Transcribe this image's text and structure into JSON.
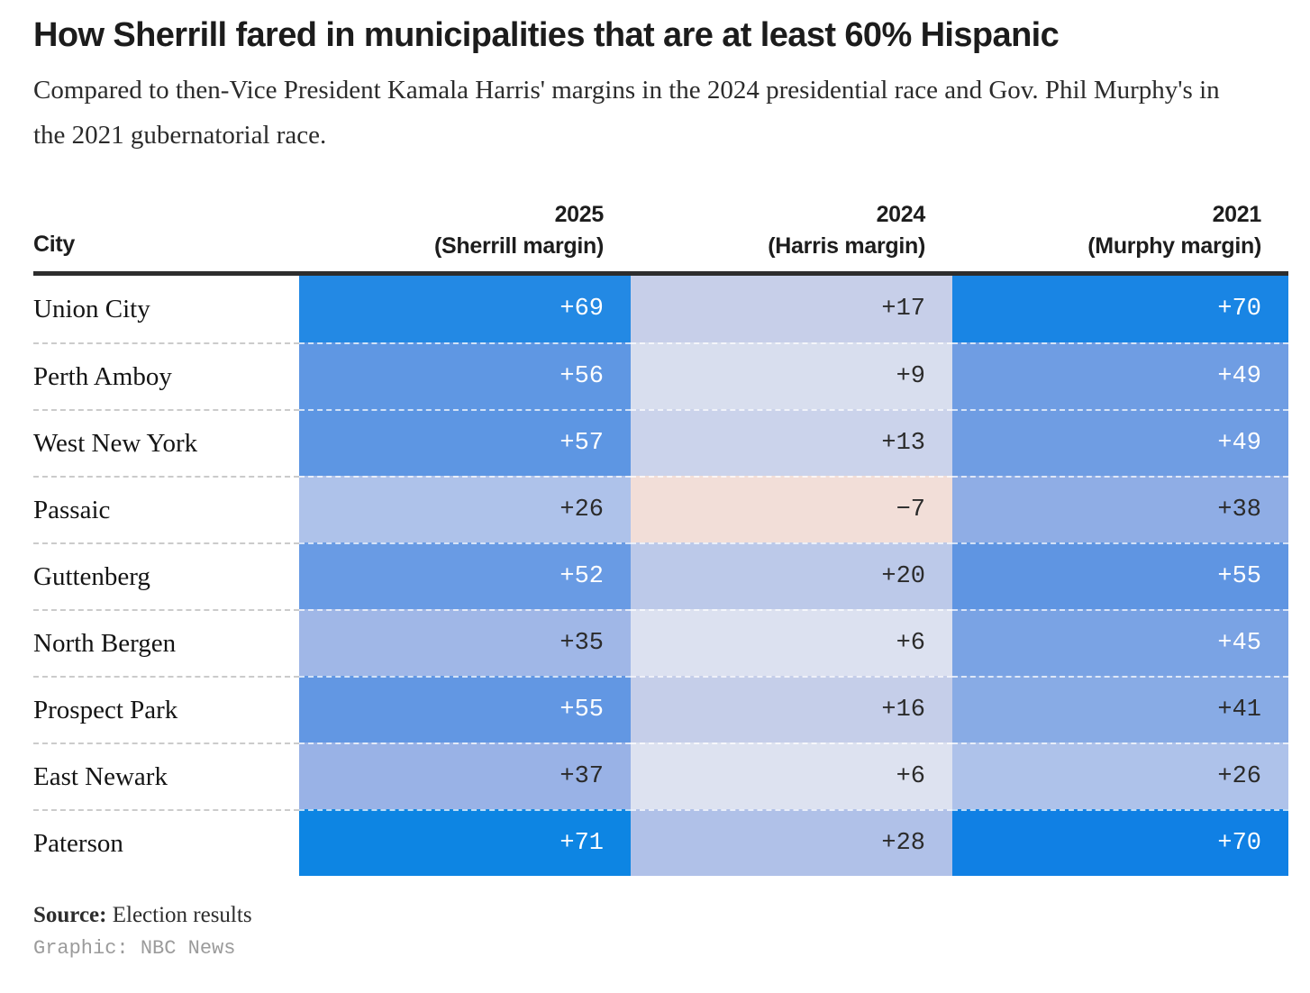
{
  "chart_data": {
    "type": "heatmap",
    "title": "How Sherrill fared in municipalities that are at least 60% Hispanic",
    "subtitle": "Compared to then-Vice President Kamala Harris' margins in the 2024 presidential race and Gov. Phil Murphy's in the 2021 gubernatorial race.",
    "city_header": "City",
    "columns": [
      {
        "year": "2025",
        "label": "(Sherrill margin)"
      },
      {
        "year": "2024",
        "label": "(Harris margin)"
      },
      {
        "year": "2021",
        "label": "(Murphy margin)"
      }
    ],
    "legend_note": "Cell color encodes margin: deep blue = large Democratic margin, pale blue = small margin, pink = negative margin",
    "value_text_dark": "#2b2b2b",
    "value_text_light": "#ffffff",
    "rows": [
      {
        "city": "Union City",
        "values": [
          {
            "display": "+69",
            "value": 69,
            "bg": "#2389E4",
            "text": "#ffffff"
          },
          {
            "display": "+17",
            "value": 17,
            "bg": "#C7CFE9",
            "text": "#2b2b2b"
          },
          {
            "display": "+70",
            "value": 70,
            "bg": "#1985E4",
            "text": "#ffffff"
          }
        ]
      },
      {
        "city": "Perth Amboy",
        "values": [
          {
            "display": "+56",
            "value": 56,
            "bg": "#5F97E3",
            "text": "#ffffff"
          },
          {
            "display": "+9",
            "value": 9,
            "bg": "#D8DEEE",
            "text": "#2b2b2b"
          },
          {
            "display": "+49",
            "value": 49,
            "bg": "#6F9DE3",
            "text": "#ffffff"
          }
        ]
      },
      {
        "city": "West New York",
        "values": [
          {
            "display": "+57",
            "value": 57,
            "bg": "#5D96E3",
            "text": "#ffffff"
          },
          {
            "display": "+13",
            "value": 13,
            "bg": "#CBD3EB",
            "text": "#2b2b2b"
          },
          {
            "display": "+49",
            "value": 49,
            "bg": "#6F9DE3",
            "text": "#ffffff"
          }
        ]
      },
      {
        "city": "Passaic",
        "values": [
          {
            "display": "+26",
            "value": 26,
            "bg": "#AEC2EA",
            "text": "#2b2b2b"
          },
          {
            "display": "−7",
            "value": -7,
            "bg": "#F2DED8",
            "text": "#2b2b2b"
          },
          {
            "display": "+38",
            "value": 38,
            "bg": "#8FADE5",
            "text": "#2b2b2b"
          }
        ]
      },
      {
        "city": "Guttenberg",
        "values": [
          {
            "display": "+52",
            "value": 52,
            "bg": "#699BE4",
            "text": "#ffffff"
          },
          {
            "display": "+20",
            "value": 20,
            "bg": "#BCC9E9",
            "text": "#2b2b2b"
          },
          {
            "display": "+55",
            "value": 55,
            "bg": "#5F95E2",
            "text": "#ffffff"
          }
        ]
      },
      {
        "city": "North Bergen",
        "values": [
          {
            "display": "+35",
            "value": 35,
            "bg": "#A0B7E7",
            "text": "#2b2b2b"
          },
          {
            "display": "+6",
            "value": 6,
            "bg": "#DCE1F0",
            "text": "#2b2b2b"
          },
          {
            "display": "+45",
            "value": 45,
            "bg": "#7AA3E4",
            "text": "#ffffff"
          }
        ]
      },
      {
        "city": "Prospect Park",
        "values": [
          {
            "display": "+55",
            "value": 55,
            "bg": "#6297E3",
            "text": "#ffffff"
          },
          {
            "display": "+16",
            "value": 16,
            "bg": "#C5CEE9",
            "text": "#2b2b2b"
          },
          {
            "display": "+41",
            "value": 41,
            "bg": "#88ABE5",
            "text": "#2b2b2b"
          }
        ]
      },
      {
        "city": "East Newark",
        "values": [
          {
            "display": "+37",
            "value": 37,
            "bg": "#99B2E6",
            "text": "#2b2b2b"
          },
          {
            "display": "+6",
            "value": 6,
            "bg": "#DDE2F0",
            "text": "#2b2b2b"
          },
          {
            "display": "+26",
            "value": 26,
            "bg": "#AEC2EA",
            "text": "#2b2b2b"
          }
        ]
      },
      {
        "city": "Paterson",
        "values": [
          {
            "display": "+71",
            "value": 71,
            "bg": "#0D85E3",
            "text": "#ffffff"
          },
          {
            "display": "+28",
            "value": 28,
            "bg": "#B0C1E8",
            "text": "#2b2b2b"
          },
          {
            "display": "+70",
            "value": 70,
            "bg": "#1080E4",
            "text": "#ffffff"
          }
        ]
      }
    ],
    "footer": {
      "source_label": "Source:",
      "source_text": " Election results",
      "credit": "Graphic: NBC News"
    }
  }
}
